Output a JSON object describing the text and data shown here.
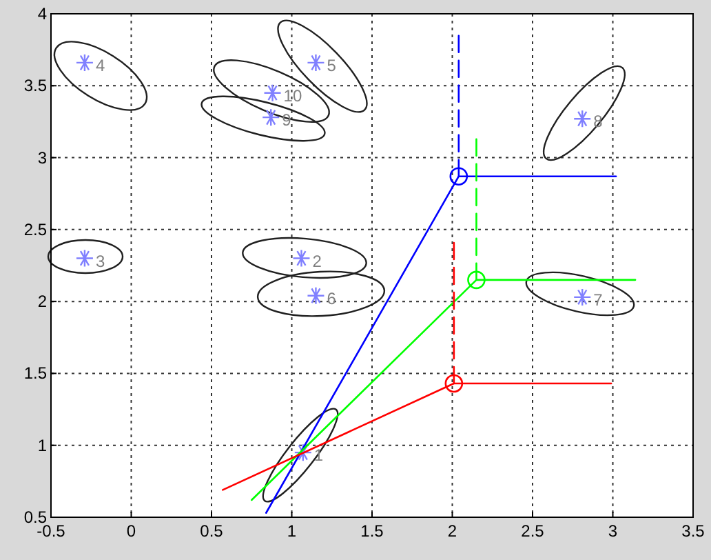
{
  "chart_data": {
    "type": "line",
    "xlim": [
      -0.5,
      3.5
    ],
    "ylim": [
      0.5,
      4
    ],
    "xticks": [
      -0.5,
      0,
      0.5,
      1,
      1.5,
      2,
      2.5,
      3,
      3.5
    ],
    "yticks": [
      0.5,
      1,
      1.5,
      2,
      2.5,
      3,
      3.5,
      4
    ],
    "grid": true,
    "marker": "none",
    "line_style": "solid",
    "series": [
      {
        "type": "scatter",
        "color": "#8080ff",
        "marker": "cross",
        "x": [
          1.07,
          1.06,
          -0.29,
          -0.29,
          1.15,
          1.15,
          2.81,
          2.81,
          0.87,
          0.88
        ],
        "values": [
          0.95,
          2.3,
          2.3,
          3.66,
          3.66,
          2.04,
          2.03,
          3.27,
          3.28,
          3.45
        ]
      },
      {
        "color": "#0000ff",
        "x": [
          0.84,
          2.04,
          3.02
        ],
        "values": [
          0.53,
          2.87,
          2.87
        ]
      },
      {
        "color": "#0000ff",
        "line_style": "dashed",
        "x": [
          2.04,
          2.04
        ],
        "values": [
          2.87,
          3.86
        ]
      },
      {
        "type": "scatter",
        "color": "#0000ff",
        "marker": "circle",
        "x": [
          2.04
        ],
        "values": [
          2.87
        ]
      },
      {
        "color": "#00ff00",
        "x": [
          0.75,
          2.15,
          3.14
        ],
        "values": [
          0.62,
          2.15,
          2.15
        ]
      },
      {
        "color": "#00ff00",
        "line_style": "dashed",
        "x": [
          2.15,
          2.15
        ],
        "values": [
          2.15,
          3.14
        ]
      },
      {
        "type": "scatter",
        "color": "#00ff00",
        "marker": "circle",
        "x": [
          2.15
        ],
        "values": [
          2.15
        ]
      },
      {
        "color": "#ff0000",
        "x": [
          0.57,
          2.01,
          2.99
        ],
        "values": [
          0.69,
          1.43,
          1.43
        ]
      },
      {
        "color": "#ff0000",
        "line_style": "dashed",
        "x": [
          2.01,
          2.01
        ],
        "values": [
          1.43,
          2.42
        ]
      },
      {
        "type": "scatter",
        "color": "#ff0000",
        "marker": "circle",
        "x": [
          2.01
        ],
        "values": [
          1.43
        ]
      }
    ],
    "annotations": [
      {
        "text": "1",
        "x": 1.07,
        "y": 0.95
      },
      {
        "text": "2",
        "x": 1.06,
        "y": 2.3
      },
      {
        "text": "3",
        "x": -0.29,
        "y": 2.3
      },
      {
        "text": "4",
        "x": -0.29,
        "y": 3.66
      },
      {
        "text": "5",
        "x": 1.15,
        "y": 3.66
      },
      {
        "text": "6",
        "x": 1.15,
        "y": 2.04
      },
      {
        "text": "7",
        "x": 2.81,
        "y": 2.03
      },
      {
        "text": "8",
        "x": 2.81,
        "y": 3.27
      },
      {
        "text": "9",
        "x": 0.87,
        "y": 3.28
      },
      {
        "text": "10",
        "x": 0.88,
        "y": 3.45
      }
    ]
  }
}
